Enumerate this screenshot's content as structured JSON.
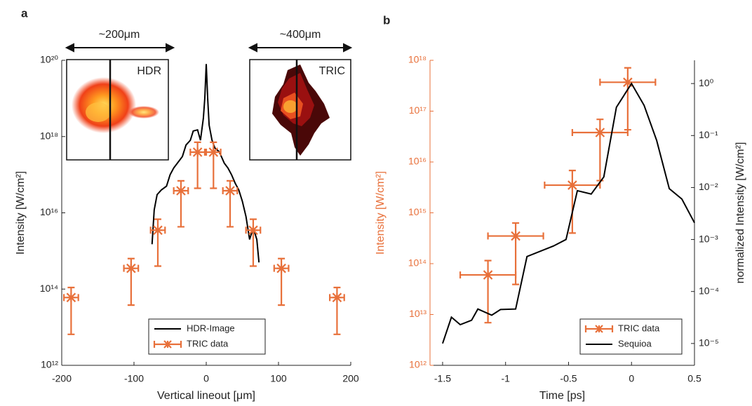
{
  "chart_data": [
    {
      "type": "line",
      "panel": "a",
      "xlabel": "Vertical lineout [μm]",
      "ylabel": "Intensity [W/cm²]",
      "xlim": [
        -200,
        200
      ],
      "xticks": [
        -200,
        -100,
        0,
        100,
        200
      ],
      "ylim": [
        1000000000000.0,
        1e+20
      ],
      "ylog": true,
      "yticks": [
        {
          "value": 1000000000000.0,
          "label": "10¹²"
        },
        {
          "value": 100000000000000.0,
          "label": "10¹⁴"
        },
        {
          "value": 1e+16,
          "label": "10¹⁶"
        },
        {
          "value": 1e+18,
          "label": "10¹⁸"
        },
        {
          "value": 1e+20,
          "label": "10²⁰"
        }
      ],
      "legend": "lower right",
      "insets": [
        {
          "label": "HDR",
          "scale": "~200μm"
        },
        {
          "label": "TRIC",
          "scale": "~400μm"
        }
      ],
      "series": [
        {
          "name": "HDR-Image",
          "style": "line",
          "color": "#000000",
          "x": [
            -75,
            -72,
            -68,
            -62,
            -55,
            -50,
            -45,
            -40,
            -33,
            -28,
            -22,
            -18,
            -12,
            -8,
            -4,
            -2,
            0,
            2,
            4,
            8,
            12,
            18,
            25,
            30,
            35,
            40,
            45,
            50,
            55,
            60,
            65,
            70,
            73
          ],
          "values": [
            1500000000000000.0,
            1.2e+16,
            3e+16,
            4e+16,
            5e+16,
            1e+17,
            1.5e+17,
            2e+17,
            3e+17,
            6e+17,
            8e+17,
            1.4e+18,
            1.5e+18,
            8e+17,
            3e+18,
            1e+19,
            8e+19,
            1e+19,
            2e+18,
            8e+17,
            5e+17,
            4e+17,
            2e+17,
            1.5e+17,
            1e+17,
            6e+16,
            4e+16,
            2e+16,
            8000000000000000.0,
            2000000000000000.0,
            4000000000000000.0,
            2000000000000000.0,
            500000000000000.0
          ]
        },
        {
          "name": "TRIC data",
          "style": "errorbar",
          "color": "#E8703A",
          "x": [
            -187,
            -104,
            -67,
            -35,
            -12,
            10,
            33,
            65,
            104,
            181
          ],
          "values": [
            60000000000000.0,
            350000000000000.0,
            3500000000000000.0,
            3.8e+16,
            3.9e+17,
            3.9e+17,
            3.8e+16,
            3500000000000000.0,
            350000000000000.0,
            60000000000000.0
          ],
          "ylow": [
            6500000000000.0,
            38000000000000.0,
            400000000000000.0,
            4300000000000000.0,
            4.4e+16,
            4.4e+16,
            4300000000000000.0,
            400000000000000.0,
            38000000000000.0,
            6500000000000.0
          ],
          "yhigh": [
            110000000000000.0,
            630000000000000.0,
            6800000000000000.0,
            6.9e+16,
            7.1e+17,
            7.1e+17,
            6.9e+16,
            6800000000000000.0,
            630000000000000.0,
            110000000000000.0
          ],
          "xerr": [
            10,
            10,
            10,
            10,
            10,
            10,
            10,
            10,
            10,
            10
          ]
        }
      ]
    },
    {
      "type": "line",
      "panel": "b",
      "xlabel": "Time [ps]",
      "ylabel": "Intensity [W/cm²]",
      "y2label": "normalized Intensity [W/cm²]",
      "yaxis_color": "#E8703A",
      "xlim": [
        -1.6,
        0.5
      ],
      "xticks": [
        -1.5,
        -1,
        -0.5,
        0,
        0.5
      ],
      "ylim": [
        1000000000000.0,
        1e+18
      ],
      "ylog": true,
      "yticks": [
        {
          "value": 1000000000000.0,
          "label": "10¹²"
        },
        {
          "value": 10000000000000.0,
          "label": "10¹³"
        },
        {
          "value": 100000000000000.0,
          "label": "10¹⁴"
        },
        {
          "value": 1000000000000000.0,
          "label": "10¹⁵"
        },
        {
          "value": 1e+16,
          "label": "10¹⁶"
        },
        {
          "value": 1e+17,
          "label": "10¹⁷"
        },
        {
          "value": 1e+18,
          "label": "10¹⁸"
        }
      ],
      "y2lim": [
        3.8e-06,
        2.8
      ],
      "y2log": true,
      "y2ticks": [
        {
          "value": 1e-05,
          "label": "10⁻⁵"
        },
        {
          "value": 0.0001,
          "label": "10⁻⁴"
        },
        {
          "value": 0.001,
          "label": "10⁻³"
        },
        {
          "value": 0.01,
          "label": "10⁻²"
        },
        {
          "value": 0.1,
          "label": "10⁻¹"
        },
        {
          "value": 1,
          "label": "10⁰"
        }
      ],
      "legend": "lower right",
      "series": [
        {
          "name": "TRIC data",
          "style": "errorbar",
          "color": "#E8703A",
          "x": [
            -1.14,
            -0.92,
            -0.47,
            -0.25,
            -0.03
          ],
          "values": [
            60000000000000.0,
            350000000000000.0,
            3500000000000000.0,
            3.8e+16,
            3.7e+17
          ],
          "ylow": [
            6900000000000.0,
            39000000000000.0,
            400000000000000.0,
            4300000000000000.0,
            4.3e+16
          ],
          "yhigh": [
            115000000000000.0,
            630000000000000.0,
            6800000000000000.0,
            6.9e+16,
            7.1e+17
          ],
          "xerr": [
            0.22,
            0.22,
            0.22,
            0.22,
            0.22
          ]
        },
        {
          "name": "Sequioa",
          "style": "line",
          "color": "#000000",
          "axis": "y2",
          "x": [
            -1.5,
            -1.43,
            -1.36,
            -1.27,
            -1.22,
            -1.11,
            -1.04,
            -0.92,
            -0.83,
            -0.62,
            -0.52,
            -0.43,
            -0.32,
            -0.22,
            -0.12,
            0,
            0.1,
            0.2,
            0.3,
            0.4,
            0.5
          ],
          "values": [
            1e-05,
            3.2e-05,
            2.3e-05,
            2.8e-05,
            4.6e-05,
            3.5e-05,
            4.5e-05,
            4.6e-05,
            0.00047,
            0.00075,
            0.001,
            0.0087,
            0.0075,
            0.016,
            0.35,
            1.0,
            0.38,
            0.08,
            0.0095,
            0.006,
            0.0021
          ]
        }
      ]
    }
  ]
}
